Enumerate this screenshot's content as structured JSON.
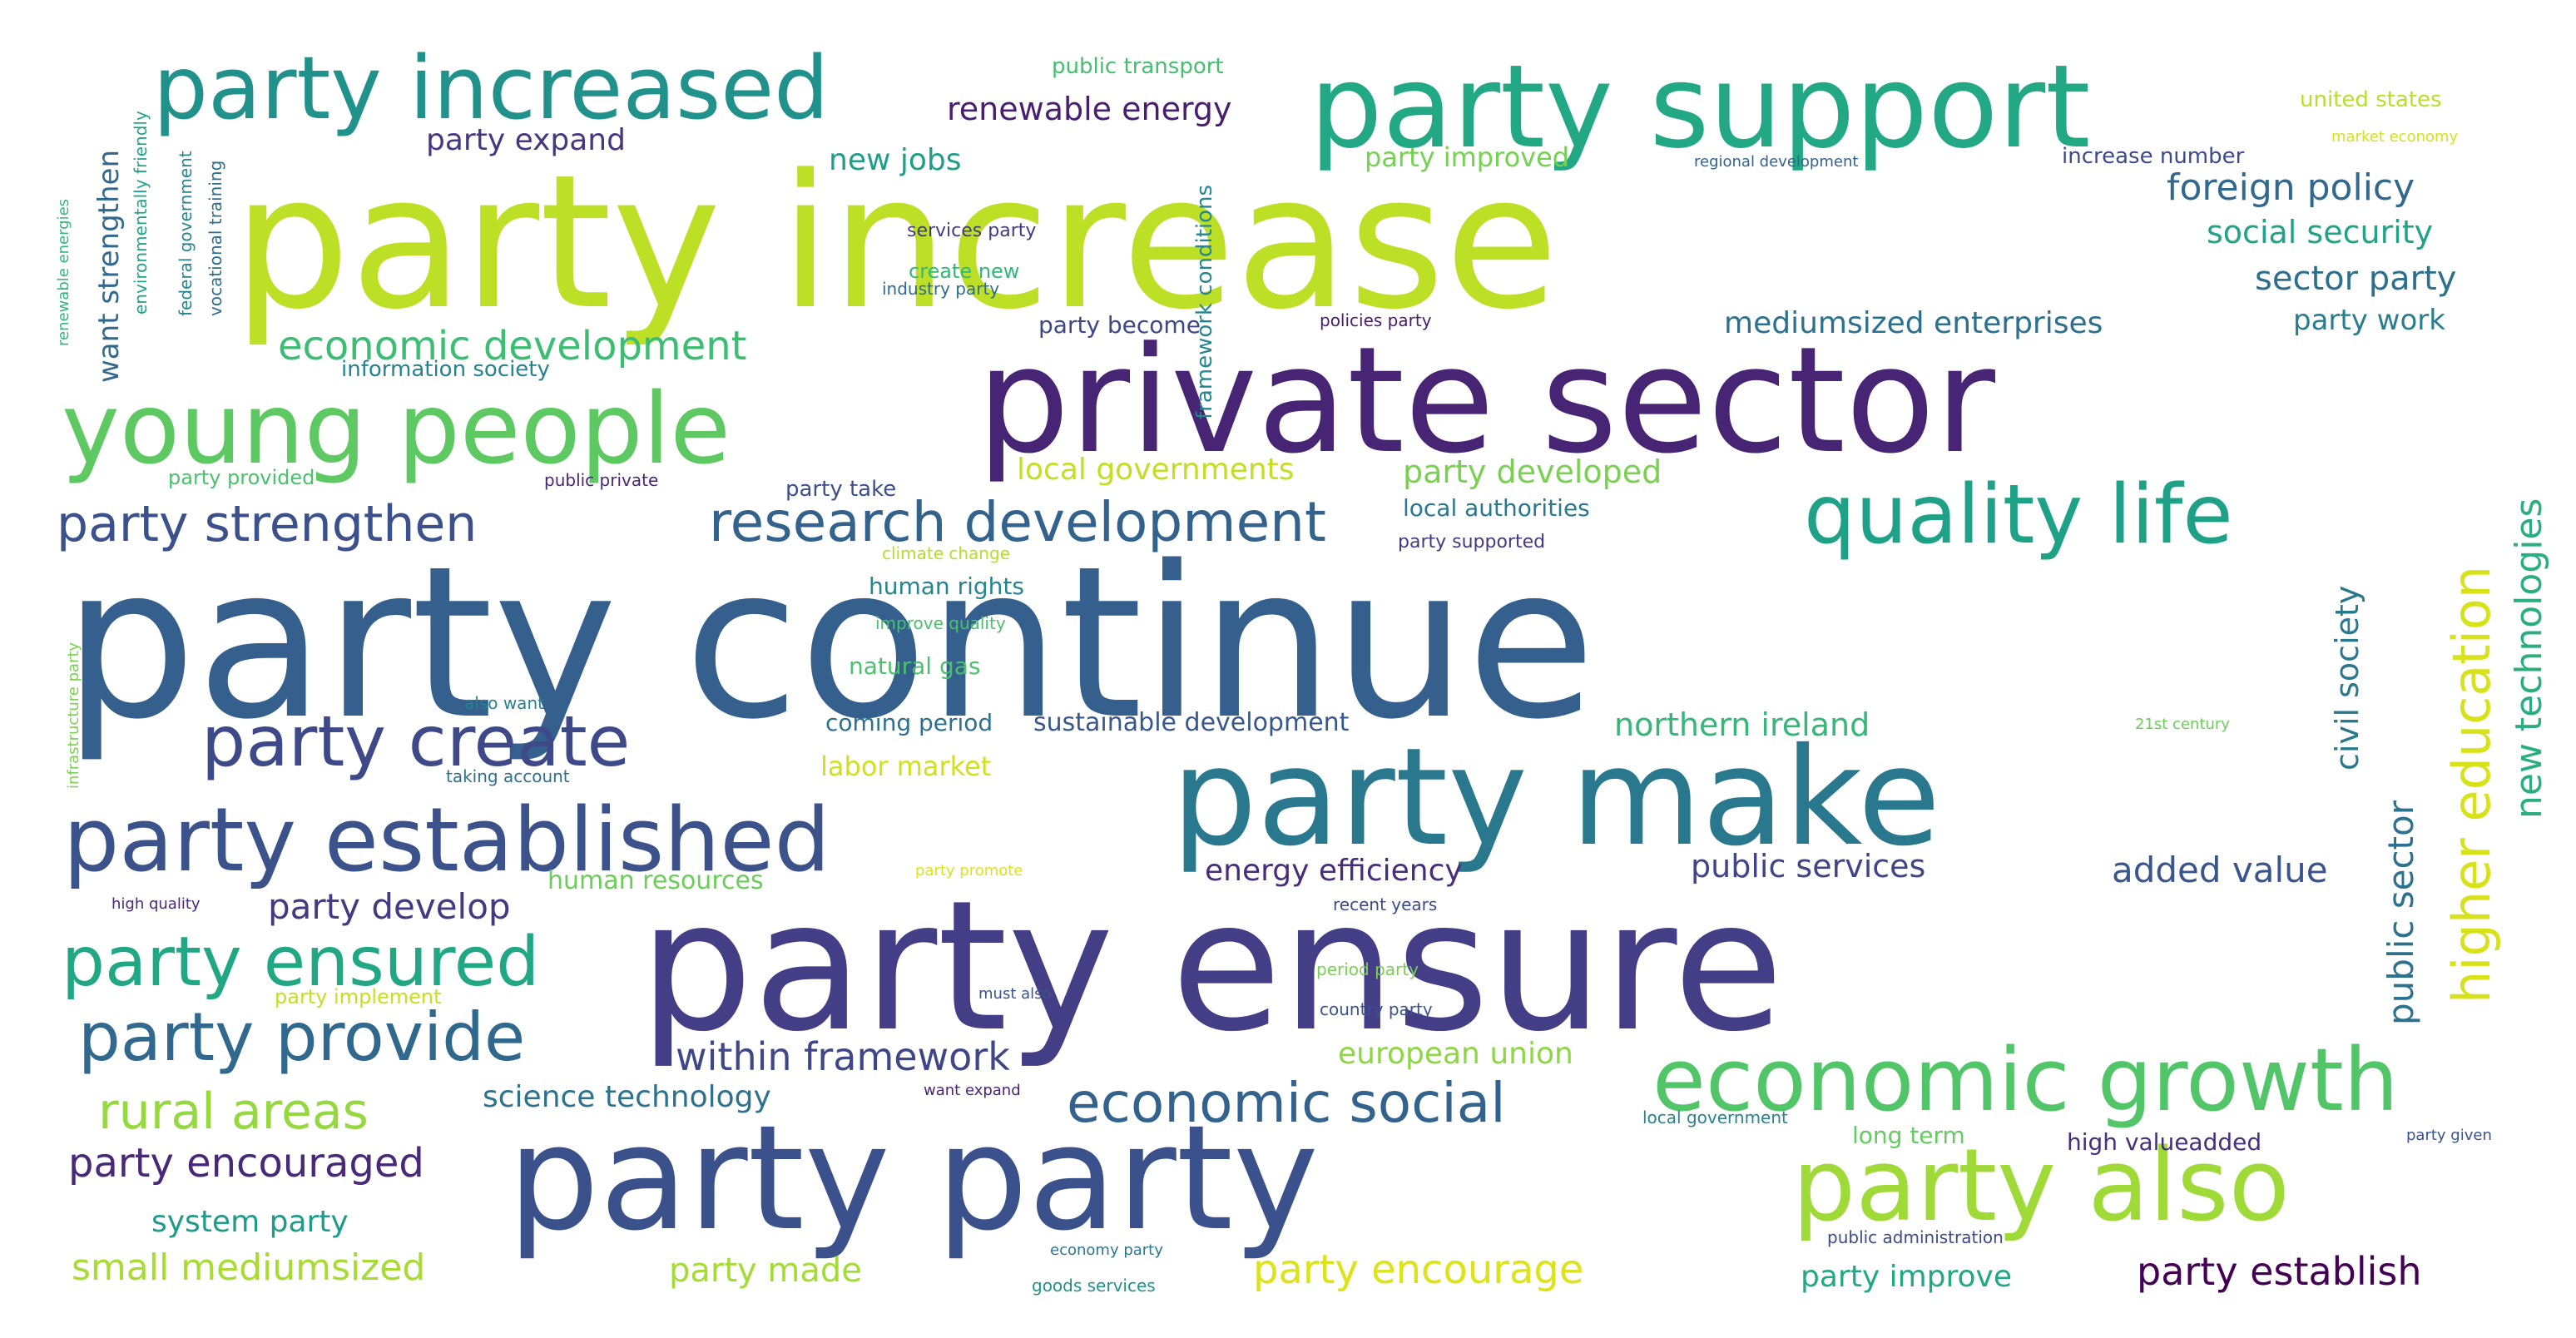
{
  "words": [
    {
      "text": "party continue",
      "color": "#35608d"
    },
    {
      "text": "party ensure",
      "color": "#433e85"
    },
    {
      "text": "party increase",
      "color": "#bddf26"
    },
    {
      "text": "private sector",
      "color": "#482475"
    },
    {
      "text": "party party",
      "color": "#3b518b"
    },
    {
      "text": "party make",
      "color": "#2a788e"
    },
    {
      "text": "party support",
      "color": "#22a884"
    },
    {
      "text": "party increased",
      "color": "#21918c"
    },
    {
      "text": "young people",
      "color": "#5ec962"
    },
    {
      "text": "party established",
      "color": "#3b528b"
    },
    {
      "text": "economic growth",
      "color": "#52c569"
    },
    {
      "text": "party also",
      "color": "#a0da39"
    },
    {
      "text": "quality life",
      "color": "#1fa187"
    },
    {
      "text": "party create",
      "color": "#3e4989"
    },
    {
      "text": "party ensured",
      "color": "#22a785"
    },
    {
      "text": "party provide",
      "color": "#31688e"
    },
    {
      "text": "research development",
      "color": "#33638d"
    },
    {
      "text": "party strengthen",
      "color": "#3c508b"
    },
    {
      "text": "economic social",
      "color": "#33628d"
    },
    {
      "text": "higher education",
      "color": "#d8e219"
    },
    {
      "text": "rural areas",
      "color": "#95d840"
    },
    {
      "text": "economic development",
      "color": "#3dbc74"
    },
    {
      "text": "within framework",
      "color": "#3f4788"
    },
    {
      "text": "party encouraged",
      "color": "#482878"
    },
    {
      "text": "new technologies",
      "color": "#29af7f"
    },
    {
      "text": "public sector",
      "color": "#2c728e"
    },
    {
      "text": "civil society",
      "color": "#2a788e"
    },
    {
      "text": "small mediumsized",
      "color": "#a8db34"
    },
    {
      "text": "party encourage",
      "color": "#dde318"
    },
    {
      "text": "party establish",
      "color": "#440154"
    },
    {
      "text": "foreign policy",
      "color": "#31688e"
    },
    {
      "text": "sector party",
      "color": "#2d708e"
    },
    {
      "text": "social security",
      "color": "#20a386"
    },
    {
      "text": "added value",
      "color": "#3a548c"
    },
    {
      "text": "public services",
      "color": "#414487"
    },
    {
      "text": "energy efficiency",
      "color": "#472d7b"
    },
    {
      "text": "party develop",
      "color": "#443983"
    },
    {
      "text": "renewable energy",
      "color": "#481f70"
    },
    {
      "text": "party expand",
      "color": "#453781"
    },
    {
      "text": "new jobs",
      "color": "#1f9e89"
    },
    {
      "text": "want strengthen",
      "color": "#31688e"
    },
    {
      "text": "mediumsized enterprises",
      "color": "#2d708e"
    },
    {
      "text": "party work",
      "color": "#287d8e"
    },
    {
      "text": "party developed",
      "color": "#7ad151"
    },
    {
      "text": "local governments",
      "color": "#c2df23"
    },
    {
      "text": "northern ireland",
      "color": "#35b779"
    },
    {
      "text": "labor market",
      "color": "#d0e11c"
    },
    {
      "text": "science technology",
      "color": "#2c728e"
    },
    {
      "text": "european union",
      "color": "#8ed645"
    },
    {
      "text": "system party",
      "color": "#1e9b8a"
    },
    {
      "text": "party made",
      "color": "#a5db36"
    },
    {
      "text": "party improve",
      "color": "#22a884"
    },
    {
      "text": "party improved",
      "color": "#75d054"
    },
    {
      "text": "sustainable development",
      "color": "#38588c"
    },
    {
      "text": "coming period",
      "color": "#2d708e"
    },
    {
      "text": "human rights",
      "color": "#25848e"
    },
    {
      "text": "natural gas",
      "color": "#4ac16d"
    },
    {
      "text": "human resources",
      "color": "#6ccd5a"
    },
    {
      "text": "party become",
      "color": "#3f4788"
    },
    {
      "text": "local authorities",
      "color": "#2a788e"
    },
    {
      "text": "high valueadded",
      "color": "#46307e"
    },
    {
      "text": "long term",
      "color": "#63cb5f"
    },
    {
      "text": "information society",
      "color": "#26828e"
    },
    {
      "text": "public transport",
      "color": "#44bf70"
    },
    {
      "text": "framework conditions",
      "color": "#24868e"
    },
    {
      "text": "party take",
      "color": "#3d4e8a"
    },
    {
      "text": "increase number",
      "color": "#3e4a89"
    },
    {
      "text": "create new",
      "color": "#35b779"
    },
    {
      "text": "party implement",
      "color": "#c5e021"
    },
    {
      "text": "united states",
      "color": "#b8de29"
    },
    {
      "text": "party provided",
      "color": "#4ac16d"
    },
    {
      "text": "party supported",
      "color": "#443a83"
    },
    {
      "text": "services party",
      "color": "#443983"
    },
    {
      "text": "industry party",
      "color": "#306a8e"
    },
    {
      "text": "policies party",
      "color": "#481b6d"
    },
    {
      "text": "public private",
      "color": "#482576"
    },
    {
      "text": "regional development",
      "color": "#33638d"
    },
    {
      "text": "market economy",
      "color": "#d2e21b"
    },
    {
      "text": "federal government",
      "color": "#25858e"
    },
    {
      "text": "vocational training",
      "color": "#2e6e8e"
    },
    {
      "text": "environmentally friendly",
      "color": "#20a486"
    },
    {
      "text": "renewable energies",
      "color": "#35b779"
    },
    {
      "text": "infrastructure party",
      "color": "#7ad151"
    },
    {
      "text": "improve quality",
      "color": "#4ac16d"
    },
    {
      "text": "climate change",
      "color": "#b5de2b"
    },
    {
      "text": "also want",
      "color": "#26828e"
    },
    {
      "text": "taking account",
      "color": "#2e6f8e"
    },
    {
      "text": "high quality",
      "color": "#482878"
    },
    {
      "text": "party promote",
      "color": "#dde318"
    },
    {
      "text": "21st century",
      "color": "#6ccd5a"
    },
    {
      "text": "recent years",
      "color": "#3e4989"
    },
    {
      "text": "period party",
      "color": "#7ad151"
    },
    {
      "text": "must also",
      "color": "#3b528b"
    },
    {
      "text": "country party",
      "color": "#3b528b"
    },
    {
      "text": "want expand",
      "color": "#482475"
    },
    {
      "text": "local government",
      "color": "#26828e"
    },
    {
      "text": "economy party",
      "color": "#2a788e"
    },
    {
      "text": "goods services",
      "color": "#21918c"
    },
    {
      "text": "public administration",
      "color": "#3e4a89"
    },
    {
      "text": "party given",
      "color": "#3b528b"
    }
  ]
}
